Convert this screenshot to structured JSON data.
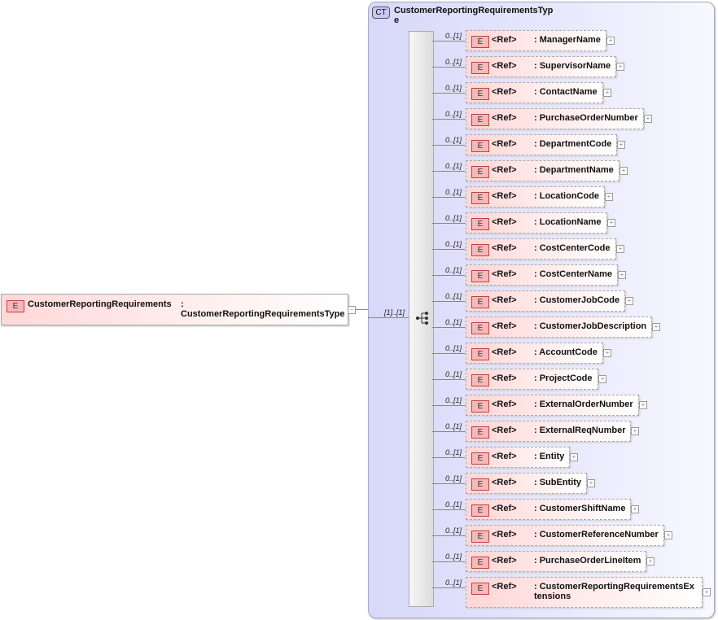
{
  "complex_type": {
    "badge": "CT",
    "name": "CustomerReportingRequirementsType"
  },
  "root_element": {
    "badge": "E",
    "name": "CustomerReportingRequirements",
    "type": ": CustomerReportingRequirementsType",
    "multiplicity": "[1]..[1]",
    "toggle": "−"
  },
  "children": [
    {
      "badge": "E",
      "ref": "<Ref>",
      "name": ": ManagerName",
      "multiplicity": "0..[1]"
    },
    {
      "badge": "E",
      "ref": "<Ref>",
      "name": ": SupervisorName",
      "multiplicity": "0..[1]"
    },
    {
      "badge": "E",
      "ref": "<Ref>",
      "name": ": ContactName",
      "multiplicity": "0..[1]"
    },
    {
      "badge": "E",
      "ref": "<Ref>",
      "name": ": PurchaseOrderNumber",
      "multiplicity": "0..[1]"
    },
    {
      "badge": "E",
      "ref": "<Ref>",
      "name": ": DepartmentCode",
      "multiplicity": "0..[1]"
    },
    {
      "badge": "E",
      "ref": "<Ref>",
      "name": ": DepartmentName",
      "multiplicity": "0..[1]"
    },
    {
      "badge": "E",
      "ref": "<Ref>",
      "name": ": LocationCode",
      "multiplicity": "0..[1]"
    },
    {
      "badge": "E",
      "ref": "<Ref>",
      "name": ": LocationName",
      "multiplicity": "0..[1]"
    },
    {
      "badge": "E",
      "ref": "<Ref>",
      "name": ": CostCenterCode",
      "multiplicity": "0..[1]"
    },
    {
      "badge": "E",
      "ref": "<Ref>",
      "name": ": CostCenterName",
      "multiplicity": "0..[1]"
    },
    {
      "badge": "E",
      "ref": "<Ref>",
      "name": ": CustomerJobCode",
      "multiplicity": "0..[1]"
    },
    {
      "badge": "E",
      "ref": "<Ref>",
      "name": ": CustomerJobDescription",
      "multiplicity": "0..[1]"
    },
    {
      "badge": "E",
      "ref": "<Ref>",
      "name": ": AccountCode",
      "multiplicity": "0..[1]"
    },
    {
      "badge": "E",
      "ref": "<Ref>",
      "name": ": ProjectCode",
      "multiplicity": "0..[1]"
    },
    {
      "badge": "E",
      "ref": "<Ref>",
      "name": ": ExternalOrderNumber",
      "multiplicity": "0..[1]"
    },
    {
      "badge": "E",
      "ref": "<Ref>",
      "name": ": ExternalReqNumber",
      "multiplicity": "0..[1]"
    },
    {
      "badge": "E",
      "ref": "<Ref>",
      "name": ": Entity",
      "multiplicity": "0..[1]"
    },
    {
      "badge": "E",
      "ref": "<Ref>",
      "name": ": SubEntity",
      "multiplicity": "0..[1]"
    },
    {
      "badge": "E",
      "ref": "<Ref>",
      "name": ": CustomerShiftName",
      "multiplicity": "0..[1]"
    },
    {
      "badge": "E",
      "ref": "<Ref>",
      "name": ": CustomerReferenceNumber",
      "multiplicity": "0..[1]"
    },
    {
      "badge": "E",
      "ref": "<Ref>",
      "name": ": PurchaseOrderLineItem",
      "multiplicity": "0..[1]"
    },
    {
      "badge": "E",
      "ref": "<Ref>",
      "name": ": CustomerReportingRequirementsExtensions",
      "multiplicity": "0..[1]"
    }
  ],
  "expand_toggle": "+"
}
